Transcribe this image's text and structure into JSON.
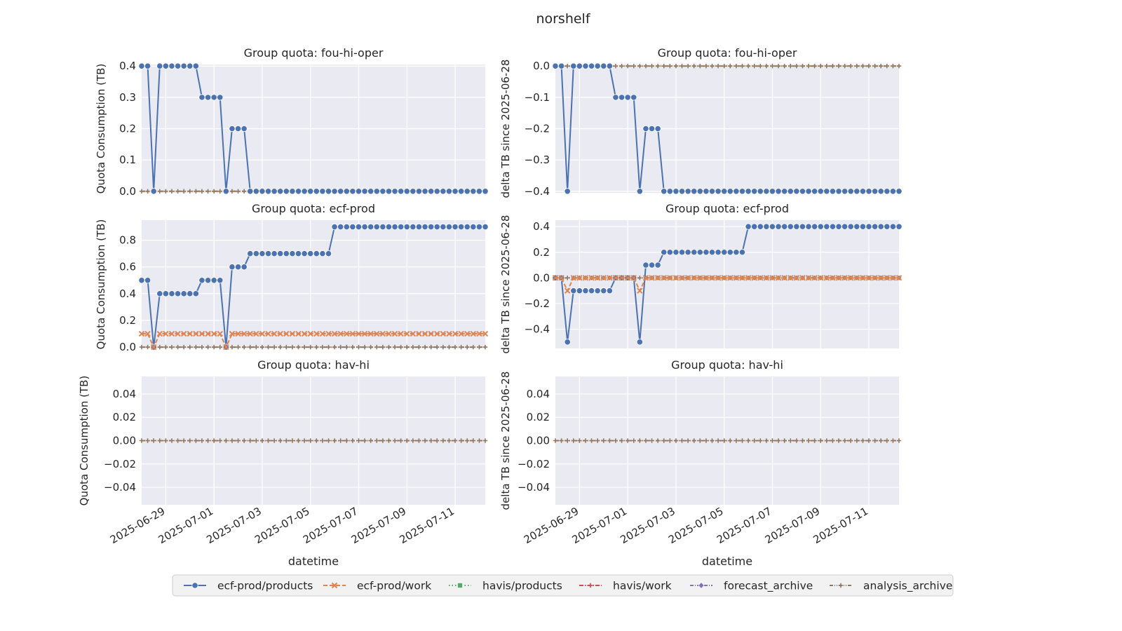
{
  "figure": {
    "title": "norshelf"
  },
  "legend": {
    "placement": "bottom-center",
    "entries": [
      {
        "name": "ecf-prod/products",
        "color": "#4c72b0",
        "dash": "solid",
        "marker": "circle"
      },
      {
        "name": "ecf-prod/work",
        "color": "#dd8452",
        "dash": "dashed",
        "marker": "x"
      },
      {
        "name": "havis/products",
        "color": "#55a868",
        "dash": "dotted",
        "marker": "square"
      },
      {
        "name": "havis/work",
        "color": "#c44e52",
        "dash": "dashdot",
        "marker": "plus"
      },
      {
        "name": "forecast_archive",
        "color": "#8172b3",
        "dash": "dashdot2",
        "marker": "diamond"
      },
      {
        "name": "analysis_archive",
        "color": "#937860",
        "dash": "dashdot3",
        "marker": "plus"
      }
    ]
  },
  "chart_data": [
    {
      "type": "line",
      "title": "Group quota: fou-hi-oper",
      "xlabel": "",
      "ylabel": "Quota Consumption (TB)",
      "x_start": "2025-06-28",
      "x_step_hours": 6,
      "xlim": [
        "2025-06-28",
        "2025-07-12T06:00"
      ],
      "ylim": [
        -0.005,
        0.405
      ],
      "yticks": [
        0.0,
        0.1,
        0.2,
        0.3,
        0.4
      ],
      "ytick_decimals": 1,
      "xticks": [
        "2025-06-29",
        "2025-07-01",
        "2025-07-03",
        "2025-07-05",
        "2025-07-07",
        "2025-07-09",
        "2025-07-11"
      ],
      "show_xticklabels": false,
      "grid": true,
      "series": [
        {
          "name": "ecf-prod/products",
          "values": [
            0.4,
            0.4,
            0.0,
            0.4,
            0.4,
            0.4,
            0.4,
            0.4,
            0.4,
            0.4,
            0.3,
            0.3,
            0.3,
            0.3,
            0.0,
            0.2,
            0.2,
            0.2,
            0.0,
            0.0,
            0.0,
            0.0,
            0.0,
            0.0,
            0.0,
            0.0,
            0.0,
            0.0,
            0.0,
            0.0,
            0.0,
            0.0,
            0.0,
            0.0,
            0.0,
            0.0,
            0.0,
            0.0,
            0.0,
            0.0,
            0.0,
            0.0,
            0.0,
            0.0,
            0.0,
            0.0,
            0.0,
            0.0,
            0.0,
            0.0,
            0.0,
            0.0,
            0.0,
            0.0,
            0.0,
            0.0,
            0.0,
            0.0
          ]
        },
        {
          "name": "analysis_archive",
          "constant": 0.0
        }
      ]
    },
    {
      "type": "line",
      "title": "Group quota: fou-hi-oper",
      "xlabel": "",
      "ylabel": "delta TB since 2025-06-28",
      "x_start": "2025-06-28",
      "x_step_hours": 6,
      "xlim": [
        "2025-06-28",
        "2025-07-12T06:00"
      ],
      "ylim": [
        -0.405,
        0.005
      ],
      "yticks": [
        -0.4,
        -0.3,
        -0.2,
        -0.1,
        0.0
      ],
      "ytick_decimals": 1,
      "xticks": [
        "2025-06-29",
        "2025-07-01",
        "2025-07-03",
        "2025-07-05",
        "2025-07-07",
        "2025-07-09",
        "2025-07-11"
      ],
      "show_xticklabels": false,
      "grid": true,
      "series": [
        {
          "name": "ecf-prod/products",
          "values": [
            0.0,
            0.0,
            -0.4,
            0.0,
            0.0,
            0.0,
            0.0,
            0.0,
            0.0,
            0.0,
            -0.1,
            -0.1,
            -0.1,
            -0.1,
            -0.4,
            -0.2,
            -0.2,
            -0.2,
            -0.4,
            -0.4,
            -0.4,
            -0.4,
            -0.4,
            -0.4,
            -0.4,
            -0.4,
            -0.4,
            -0.4,
            -0.4,
            -0.4,
            -0.4,
            -0.4,
            -0.4,
            -0.4,
            -0.4,
            -0.4,
            -0.4,
            -0.4,
            -0.4,
            -0.4,
            -0.4,
            -0.4,
            -0.4,
            -0.4,
            -0.4,
            -0.4,
            -0.4,
            -0.4,
            -0.4,
            -0.4,
            -0.4,
            -0.4,
            -0.4,
            -0.4,
            -0.4,
            -0.4,
            -0.4,
            -0.4
          ]
        },
        {
          "name": "analysis_archive",
          "constant": 0.0
        }
      ]
    },
    {
      "type": "line",
      "title": "Group quota: ecf-prod",
      "xlabel": "",
      "ylabel": "Quota Consumption (TB)",
      "x_start": "2025-06-28",
      "x_step_hours": 6,
      "xlim": [
        "2025-06-28",
        "2025-07-12T06:00"
      ],
      "ylim": [
        -0.01,
        0.95
      ],
      "yticks": [
        0.0,
        0.2,
        0.4,
        0.6,
        0.8
      ],
      "ytick_decimals": 1,
      "xticks": [
        "2025-06-29",
        "2025-07-01",
        "2025-07-03",
        "2025-07-05",
        "2025-07-07",
        "2025-07-09",
        "2025-07-11"
      ],
      "show_xticklabels": false,
      "grid": true,
      "series": [
        {
          "name": "ecf-prod/products",
          "values": [
            0.5,
            0.5,
            0.0,
            0.4,
            0.4,
            0.4,
            0.4,
            0.4,
            0.4,
            0.4,
            0.5,
            0.5,
            0.5,
            0.5,
            0.0,
            0.6,
            0.6,
            0.6,
            0.7,
            0.7,
            0.7,
            0.7,
            0.7,
            0.7,
            0.7,
            0.7,
            0.7,
            0.7,
            0.7,
            0.7,
            0.7,
            0.7,
            0.9,
            0.9,
            0.9,
            0.9,
            0.9,
            0.9,
            0.9,
            0.9,
            0.9,
            0.9,
            0.9,
            0.9,
            0.9,
            0.9,
            0.9,
            0.9,
            0.9,
            0.9,
            0.9,
            0.9,
            0.9,
            0.9,
            0.9,
            0.9,
            0.9,
            0.9
          ]
        },
        {
          "name": "ecf-prod/work",
          "values": [
            0.1,
            0.1,
            0.0,
            0.1,
            0.1,
            0.1,
            0.1,
            0.1,
            0.1,
            0.1,
            0.1,
            0.1,
            0.1,
            0.1,
            0.0,
            0.1,
            0.1,
            0.1,
            0.1,
            0.1,
            0.1,
            0.1,
            0.1,
            0.1,
            0.1,
            0.1,
            0.1,
            0.1,
            0.1,
            0.1,
            0.1,
            0.1,
            0.1,
            0.1,
            0.1,
            0.1,
            0.1,
            0.1,
            0.1,
            0.1,
            0.1,
            0.1,
            0.1,
            0.1,
            0.1,
            0.1,
            0.1,
            0.1,
            0.1,
            0.1,
            0.1,
            0.1,
            0.1,
            0.1,
            0.1,
            0.1,
            0.1,
            0.1
          ]
        },
        {
          "name": "analysis_archive",
          "constant": 0.0
        }
      ]
    },
    {
      "type": "line",
      "title": "Group quota: ecf-prod",
      "xlabel": "",
      "ylabel": "delta TB since 2025-06-28",
      "x_start": "2025-06-28",
      "x_step_hours": 6,
      "xlim": [
        "2025-06-28",
        "2025-07-12T06:00"
      ],
      "ylim": [
        -0.55,
        0.45
      ],
      "yticks": [
        -0.4,
        -0.2,
        0.0,
        0.2,
        0.4
      ],
      "ytick_decimals": 1,
      "xticks": [
        "2025-06-29",
        "2025-07-01",
        "2025-07-03",
        "2025-07-05",
        "2025-07-07",
        "2025-07-09",
        "2025-07-11"
      ],
      "show_xticklabels": false,
      "grid": true,
      "series": [
        {
          "name": "ecf-prod/products",
          "values": [
            0.0,
            0.0,
            -0.5,
            -0.1,
            -0.1,
            -0.1,
            -0.1,
            -0.1,
            -0.1,
            -0.1,
            0.0,
            0.0,
            0.0,
            0.0,
            -0.5,
            0.1,
            0.1,
            0.1,
            0.2,
            0.2,
            0.2,
            0.2,
            0.2,
            0.2,
            0.2,
            0.2,
            0.2,
            0.2,
            0.2,
            0.2,
            0.2,
            0.2,
            0.4,
            0.4,
            0.4,
            0.4,
            0.4,
            0.4,
            0.4,
            0.4,
            0.4,
            0.4,
            0.4,
            0.4,
            0.4,
            0.4,
            0.4,
            0.4,
            0.4,
            0.4,
            0.4,
            0.4,
            0.4,
            0.4,
            0.4,
            0.4,
            0.4,
            0.4
          ]
        },
        {
          "name": "ecf-prod/work",
          "values": [
            0.0,
            0.0,
            -0.1,
            0.0,
            0.0,
            0.0,
            0.0,
            0.0,
            0.0,
            0.0,
            0.0,
            0.0,
            0.0,
            0.0,
            -0.1,
            0.0,
            0.0,
            0.0,
            0.0,
            0.0,
            0.0,
            0.0,
            0.0,
            0.0,
            0.0,
            0.0,
            0.0,
            0.0,
            0.0,
            0.0,
            0.0,
            0.0,
            0.0,
            0.0,
            0.0,
            0.0,
            0.0,
            0.0,
            0.0,
            0.0,
            0.0,
            0.0,
            0.0,
            0.0,
            0.0,
            0.0,
            0.0,
            0.0,
            0.0,
            0.0,
            0.0,
            0.0,
            0.0,
            0.0,
            0.0,
            0.0,
            0.0,
            0.0
          ]
        },
        {
          "name": "analysis_archive",
          "constant": 0.0
        }
      ]
    },
    {
      "type": "line",
      "title": "Group quota: hav-hi",
      "xlabel": "datetime",
      "ylabel": "Quota Consumption (TB)",
      "x_start": "2025-06-28",
      "x_step_hours": 6,
      "xlim": [
        "2025-06-28",
        "2025-07-12T06:00"
      ],
      "ylim": [
        -0.055,
        0.055
      ],
      "yticks": [
        -0.04,
        -0.02,
        0.0,
        0.02,
        0.04
      ],
      "ytick_decimals": 2,
      "xticks": [
        "2025-06-29",
        "2025-07-01",
        "2025-07-03",
        "2025-07-05",
        "2025-07-07",
        "2025-07-09",
        "2025-07-11"
      ],
      "show_xticklabels": true,
      "grid": true,
      "series": [
        {
          "name": "analysis_archive",
          "constant": 0.0
        }
      ]
    },
    {
      "type": "line",
      "title": "Group quota: hav-hi",
      "xlabel": "datetime",
      "ylabel": "delta TB since 2025-06-28",
      "x_start": "2025-06-28",
      "x_step_hours": 6,
      "xlim": [
        "2025-06-28",
        "2025-07-12T06:00"
      ],
      "ylim": [
        -0.055,
        0.055
      ],
      "yticks": [
        -0.04,
        -0.02,
        0.0,
        0.02,
        0.04
      ],
      "ytick_decimals": 2,
      "xticks": [
        "2025-06-29",
        "2025-07-01",
        "2025-07-03",
        "2025-07-05",
        "2025-07-07",
        "2025-07-09",
        "2025-07-11"
      ],
      "show_xticklabels": true,
      "grid": true,
      "series": [
        {
          "name": "analysis_archive",
          "constant": 0.0
        }
      ]
    }
  ]
}
